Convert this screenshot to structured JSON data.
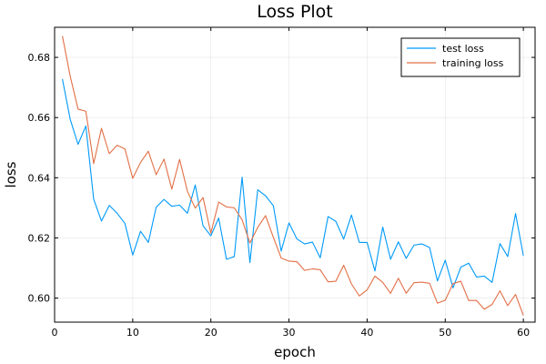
{
  "chart_data": {
    "type": "line",
    "title": "Loss Plot",
    "xlabel": "epoch",
    "ylabel": "loss",
    "xlim": [
      0,
      61.5
    ],
    "ylim": [
      0.592,
      0.69
    ],
    "xticks": [
      0,
      10,
      20,
      30,
      40,
      50,
      60
    ],
    "yticks": [
      0.6,
      0.62,
      0.64,
      0.66,
      0.68
    ],
    "grid": true,
    "legend_position": "top-right",
    "x": [
      1,
      2,
      3,
      4,
      5,
      6,
      7,
      8,
      9,
      10,
      11,
      12,
      13,
      14,
      15,
      16,
      17,
      18,
      19,
      20,
      21,
      22,
      23,
      24,
      25,
      26,
      27,
      28,
      29,
      30,
      31,
      32,
      33,
      34,
      35,
      36,
      37,
      38,
      39,
      40,
      41,
      42,
      43,
      44,
      45,
      46,
      47,
      48,
      49,
      50,
      51,
      52,
      53,
      54,
      55,
      56,
      57,
      58,
      59,
      60
    ],
    "series": [
      {
        "name": "test loss",
        "color": "#009af9",
        "values": [
          0.6728,
          0.6594,
          0.6511,
          0.6572,
          0.6329,
          0.6256,
          0.6308,
          0.6282,
          0.6248,
          0.6143,
          0.6222,
          0.6185,
          0.6302,
          0.6328,
          0.6305,
          0.6309,
          0.6282,
          0.6376,
          0.624,
          0.6207,
          0.6266,
          0.6129,
          0.6138,
          0.6402,
          0.6118,
          0.636,
          0.634,
          0.6307,
          0.6156,
          0.625,
          0.6197,
          0.618,
          0.6186,
          0.6134,
          0.6271,
          0.6255,
          0.6196,
          0.6276,
          0.6185,
          0.6185,
          0.609,
          0.6236,
          0.6129,
          0.6187,
          0.6132,
          0.6176,
          0.618,
          0.6168,
          0.6057,
          0.6126,
          0.6034,
          0.6103,
          0.6116,
          0.607,
          0.6073,
          0.6052,
          0.6181,
          0.6138,
          0.6281,
          0.6141
        ]
      },
      {
        "name": "training loss",
        "color": "#e26f46",
        "values": [
          0.6871,
          0.6737,
          0.6628,
          0.6621,
          0.6447,
          0.6564,
          0.648,
          0.6508,
          0.6496,
          0.6398,
          0.6451,
          0.6488,
          0.641,
          0.6462,
          0.6362,
          0.6461,
          0.6355,
          0.6299,
          0.6334,
          0.6216,
          0.6319,
          0.6303,
          0.63,
          0.626,
          0.6183,
          0.6235,
          0.6274,
          0.6202,
          0.6133,
          0.6123,
          0.6121,
          0.6092,
          0.6097,
          0.6094,
          0.6054,
          0.6056,
          0.6109,
          0.6047,
          0.6007,
          0.6027,
          0.6073,
          0.6052,
          0.6016,
          0.6066,
          0.6016,
          0.6051,
          0.6053,
          0.6049,
          0.5983,
          0.5993,
          0.6048,
          0.6056,
          0.5992,
          0.5992,
          0.5963,
          0.5979,
          0.6024,
          0.5975,
          0.6012,
          0.5942
        ]
      }
    ]
  }
}
